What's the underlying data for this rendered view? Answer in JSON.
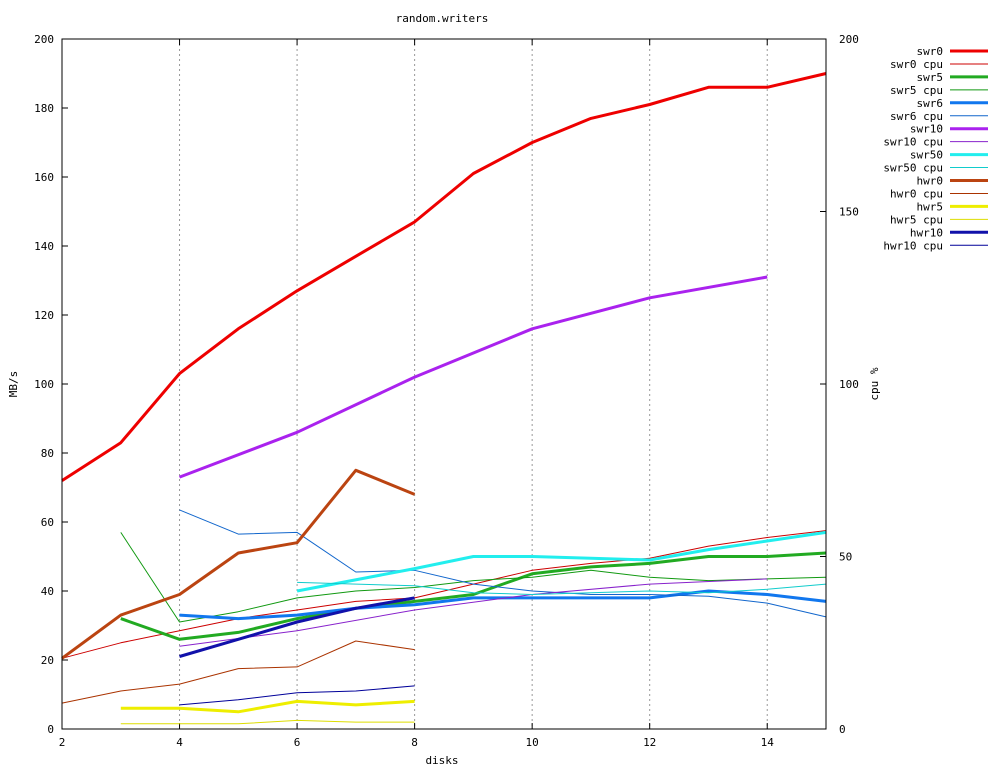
{
  "chart_data": {
    "type": "line",
    "title": "random.writers",
    "xlabel": "disks",
    "ylabel": "MB/s",
    "y2label": "cpu %",
    "xlim": [
      2,
      15
    ],
    "ylim": [
      0,
      200
    ],
    "y2lim": [
      0,
      200
    ],
    "x_ticks": [
      "2",
      "4",
      "6",
      "8",
      "10",
      "12",
      "14"
    ],
    "y_ticks": [
      "0",
      "20",
      "40",
      "60",
      "80",
      "100",
      "120",
      "140",
      "160",
      "180",
      "200"
    ],
    "y2_ticks": [
      "0",
      "50",
      "100",
      "150",
      "200"
    ],
    "grid": "vertical dashed at x ticks",
    "legend_position": "right outside",
    "series": [
      {
        "name": "swr0",
        "axis": "y",
        "color": "#ee0000",
        "width": 3,
        "x": [
          2,
          3,
          4,
          5,
          6,
          7,
          8,
          9,
          10,
          11,
          12,
          13,
          14,
          15
        ],
        "y": [
          72,
          83,
          103,
          116,
          127,
          137,
          147,
          161,
          170,
          177,
          181,
          186,
          186,
          190
        ]
      },
      {
        "name": "swr0 cpu",
        "axis": "y2",
        "color": "#cc0000",
        "width": 1,
        "x": [
          2,
          3,
          4,
          5,
          6,
          7,
          8,
          9,
          10,
          11,
          12,
          13,
          14,
          15
        ],
        "y": [
          20.5,
          25,
          28.5,
          32,
          34.5,
          37,
          38,
          42,
          46,
          48,
          49.5,
          53,
          55.5,
          57.5
        ]
      },
      {
        "name": "swr5",
        "axis": "y",
        "color": "#22aa22",
        "width": 3,
        "x": [
          3,
          4,
          5,
          6,
          7,
          8,
          9,
          10,
          11,
          12,
          13,
          14,
          15
        ],
        "y": [
          32,
          26,
          28,
          32,
          35,
          37,
          39,
          45,
          47,
          48,
          50,
          50,
          51
        ]
      },
      {
        "name": "swr5 cpu",
        "axis": "y2",
        "color": "#119911",
        "width": 1,
        "x": [
          3,
          4,
          5,
          6,
          7,
          8,
          9,
          10,
          11,
          12,
          13,
          14,
          15
        ],
        "y": [
          57,
          31,
          34,
          38,
          40,
          41,
          43,
          44,
          46,
          44,
          43,
          43.5,
          44
        ]
      },
      {
        "name": "swr6",
        "axis": "y",
        "color": "#1177ee",
        "width": 3,
        "x": [
          4,
          5,
          6,
          7,
          8,
          9,
          10,
          11,
          12,
          13,
          14,
          15
        ],
        "y": [
          33,
          32,
          33,
          35,
          36,
          38,
          38,
          38,
          38,
          40,
          39,
          37
        ]
      },
      {
        "name": "swr6 cpu",
        "axis": "y2",
        "color": "#1166cc",
        "width": 1,
        "x": [
          4,
          5,
          6,
          7,
          8,
          9,
          10,
          11,
          12,
          13,
          14,
          15
        ],
        "y": [
          63.5,
          56.5,
          57,
          45.5,
          46,
          42,
          40,
          39,
          39,
          38.5,
          36.5,
          32.5
        ]
      },
      {
        "name": "swr10",
        "axis": "y",
        "color": "#aa22ee",
        "width": 3,
        "x": [
          4,
          6,
          8,
          10,
          12,
          14
        ],
        "y": [
          73,
          86,
          102,
          116,
          125,
          131
        ]
      },
      {
        "name": "swr10 cpu",
        "axis": "y2",
        "color": "#8822cc",
        "width": 1,
        "x": [
          4,
          6,
          8,
          10,
          12,
          14
        ],
        "y": [
          24,
          28.5,
          34.5,
          39,
          42,
          43.5
        ]
      },
      {
        "name": "swr50",
        "axis": "y",
        "color": "#22eeee",
        "width": 3,
        "x": [
          6,
          8,
          9,
          10,
          11,
          12,
          13,
          14,
          15
        ],
        "y": [
          40,
          46.5,
          50,
          50,
          49.5,
          49,
          52,
          54.5,
          57
        ]
      },
      {
        "name": "swr50 cpu",
        "axis": "y2",
        "color": "#11cccc",
        "width": 1,
        "x": [
          6,
          8,
          9,
          10,
          11,
          12,
          13,
          14,
          15
        ],
        "y": [
          42.5,
          41.5,
          39.5,
          39,
          39.5,
          40,
          39.5,
          40.5,
          42
        ]
      },
      {
        "name": "hwr0",
        "axis": "y",
        "color": "#bb4411",
        "width": 3,
        "x": [
          2,
          3,
          4,
          5,
          6,
          7,
          8
        ],
        "y": [
          20.5,
          33,
          39,
          51,
          54,
          75,
          68
        ]
      },
      {
        "name": "hwr0 cpu",
        "axis": "y2",
        "color": "#aa3300",
        "width": 1,
        "x": [
          2,
          3,
          4,
          5,
          6,
          7,
          8
        ],
        "y": [
          7.5,
          11,
          13,
          17.5,
          18,
          25.5,
          23
        ]
      },
      {
        "name": "hwr5",
        "axis": "y",
        "color": "#eeee00",
        "width": 3,
        "x": [
          3,
          4,
          5,
          6,
          7,
          8
        ],
        "y": [
          6,
          6,
          5,
          8,
          7,
          8
        ]
      },
      {
        "name": "hwr5 cpu",
        "axis": "y2",
        "color": "#dddd00",
        "width": 1,
        "x": [
          3,
          4,
          5,
          6,
          7,
          8
        ],
        "y": [
          1.5,
          1.5,
          1.5,
          2.5,
          2,
          2
        ]
      },
      {
        "name": "hwr10",
        "axis": "y",
        "color": "#1111aa",
        "width": 3,
        "x": [
          4,
          5,
          6,
          7,
          8
        ],
        "y": [
          21,
          26,
          31,
          35,
          38
        ]
      },
      {
        "name": "hwr10 cpu",
        "axis": "y2",
        "color": "#000099",
        "width": 1,
        "x": [
          4,
          5,
          6,
          7,
          8
        ],
        "y": [
          7,
          8.5,
          10.5,
          11,
          12.5
        ]
      }
    ]
  }
}
